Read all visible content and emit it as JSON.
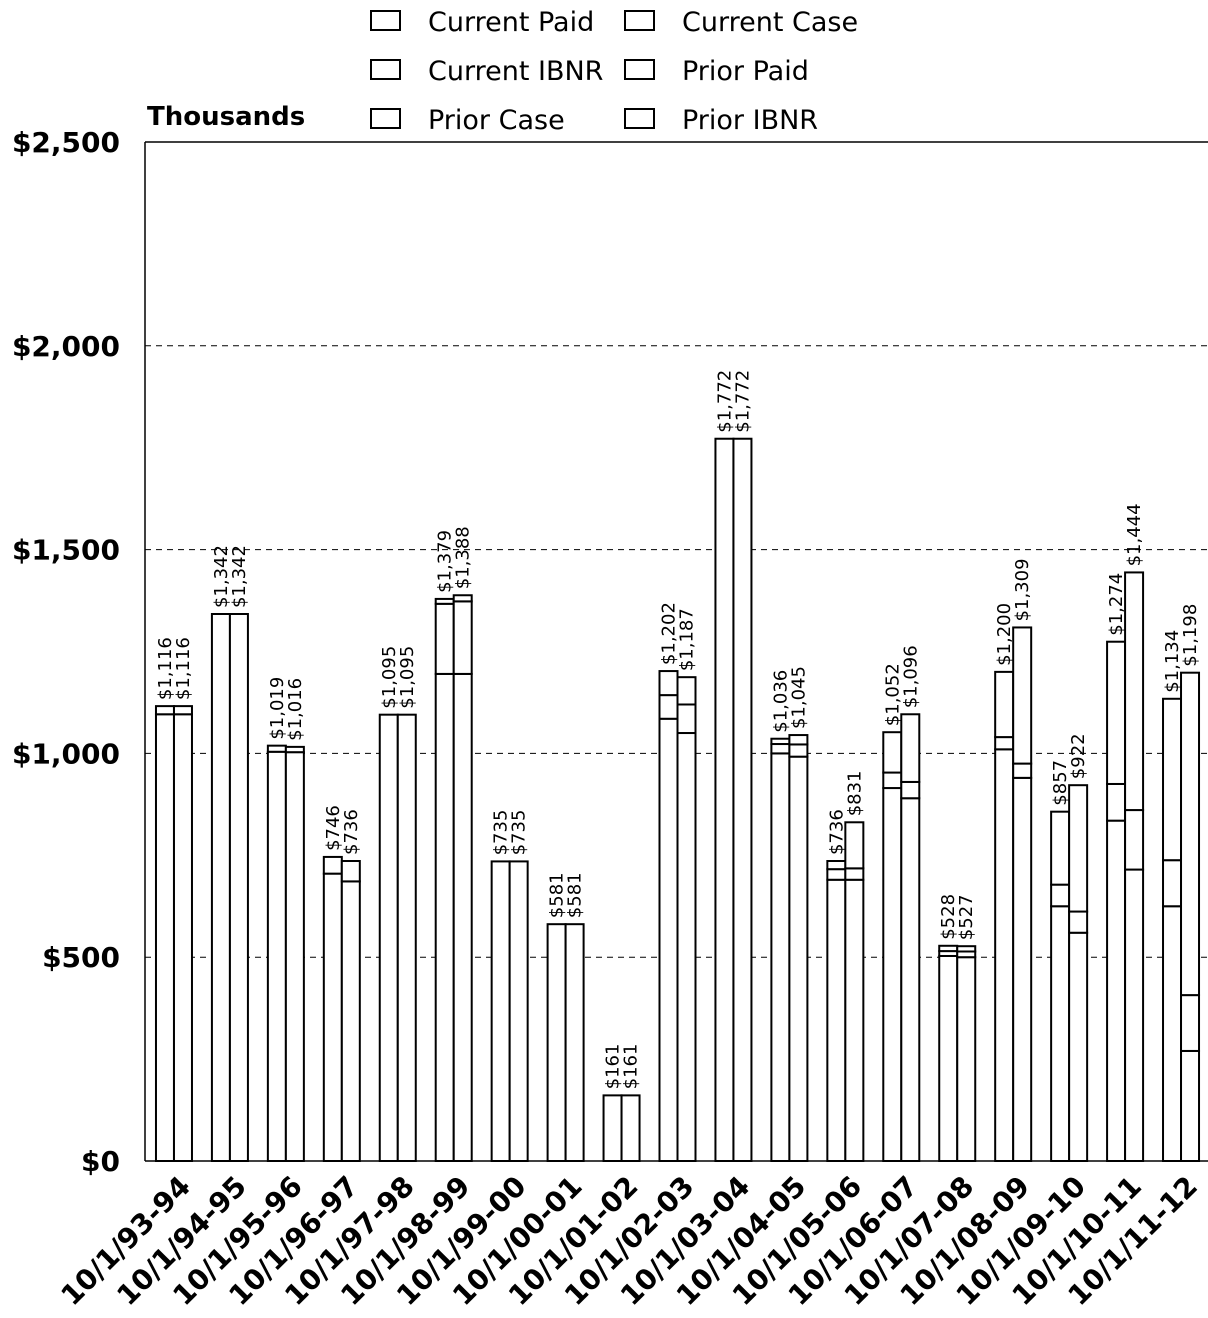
{
  "chart_data": {
    "type": "bar",
    "stacked": true,
    "grouped_pairs": true,
    "unit_label": "Thousands",
    "ylim": [
      0,
      2500
    ],
    "y_ticks": [
      0,
      500,
      1000,
      1500,
      2000,
      2500
    ],
    "y_tick_labels": [
      "$0",
      "$500",
      "$1,000",
      "$1,500",
      "$2,000",
      "$2,500"
    ],
    "grid": "horizontal dashed",
    "legend_position": "top",
    "legend": [
      "Current Paid",
      "Current Case",
      "Current IBNR",
      "Prior Paid",
      "Prior Case",
      "Prior IBNR"
    ],
    "categories": [
      "10/1/93-94",
      "10/1/94-95",
      "10/1/95-96",
      "10/1/96-97",
      "10/1/97-98",
      "10/1/98-99",
      "10/1/99-00",
      "10/1/00-01",
      "10/1/01-02",
      "10/1/02-03",
      "10/1/03-04",
      "10/1/04-05",
      "10/1/05-06",
      "10/1/06-07",
      "10/1/07-08",
      "10/1/08-09",
      "10/1/09-10",
      "10/1/10-11",
      "10/1/11-12"
    ],
    "bars": [
      {
        "label": "$1,116",
        "total": 1116,
        "segments": [
          1096,
          20
        ]
      },
      {
        "label": "$1,116",
        "total": 1116,
        "segments": [
          1096,
          20
        ]
      },
      {
        "label": "$1,342",
        "total": 1342,
        "segments": [
          1342
        ]
      },
      {
        "label": "$1,342",
        "total": 1342,
        "segments": [
          1342
        ]
      },
      {
        "label": "$1,019",
        "total": 1019,
        "segments": [
          1004,
          15
        ]
      },
      {
        "label": "$1,016",
        "total": 1016,
        "segments": [
          1003,
          13
        ]
      },
      {
        "label": "$746",
        "total": 746,
        "segments": [
          705,
          41
        ]
      },
      {
        "label": "$736",
        "total": 736,
        "segments": [
          686,
          50
        ]
      },
      {
        "label": "$1,095",
        "total": 1095,
        "segments": [
          1095
        ]
      },
      {
        "label": "$1,095",
        "total": 1095,
        "segments": [
          1095
        ]
      },
      {
        "label": "$1,379",
        "total": 1379,
        "segments": [
          1195,
          172,
          12
        ]
      },
      {
        "label": "$1,388",
        "total": 1388,
        "segments": [
          1195,
          178,
          15
        ]
      },
      {
        "label": "$735",
        "total": 735,
        "segments": [
          735
        ]
      },
      {
        "label": "$735",
        "total": 735,
        "segments": [
          735
        ]
      },
      {
        "label": "$581",
        "total": 581,
        "segments": [
          581
        ]
      },
      {
        "label": "$581",
        "total": 581,
        "segments": [
          581
        ]
      },
      {
        "label": "$161",
        "total": 161,
        "segments": [
          161
        ]
      },
      {
        "label": "$161",
        "total": 161,
        "segments": [
          161
        ]
      },
      {
        "label": "$1,202",
        "total": 1202,
        "segments": [
          1085,
          58,
          59
        ]
      },
      {
        "label": "$1,187",
        "total": 1187,
        "segments": [
          1050,
          70,
          67
        ]
      },
      {
        "label": "$1,772",
        "total": 1772,
        "segments": [
          1772
        ]
      },
      {
        "label": "$1,772",
        "total": 1772,
        "segments": [
          1772
        ]
      },
      {
        "label": "$1,036",
        "total": 1036,
        "segments": [
          1000,
          23,
          13
        ]
      },
      {
        "label": "$1,045",
        "total": 1045,
        "segments": [
          992,
          30,
          23
        ]
      },
      {
        "label": "$736",
        "total": 736,
        "segments": [
          690,
          26,
          20
        ]
      },
      {
        "label": "$831",
        "total": 831,
        "segments": [
          690,
          28,
          113
        ]
      },
      {
        "label": "$1,052",
        "total": 1052,
        "segments": [
          915,
          38,
          99
        ]
      },
      {
        "label": "$1,096",
        "total": 1096,
        "segments": [
          890,
          40,
          166
        ]
      },
      {
        "label": "$528",
        "total": 528,
        "segments": [
          503,
          12,
          13
        ]
      },
      {
        "label": "$527",
        "total": 527,
        "segments": [
          500,
          14,
          13
        ]
      },
      {
        "label": "$1,200",
        "total": 1200,
        "segments": [
          1010,
          30,
          160
        ]
      },
      {
        "label": "$1,309",
        "total": 1309,
        "segments": [
          940,
          35,
          334
        ]
      },
      {
        "label": "$857",
        "total": 857,
        "segments": [
          625,
          53,
          179
        ]
      },
      {
        "label": "$922",
        "total": 922,
        "segments": [
          560,
          52,
          310
        ]
      },
      {
        "label": "$1,274",
        "total": 1274,
        "segments": [
          835,
          90,
          349
        ]
      },
      {
        "label": "$1,444",
        "total": 1444,
        "segments": [
          715,
          146,
          583
        ]
      },
      {
        "label": "$1,134",
        "total": 1134,
        "segments": [
          625,
          113,
          396
        ]
      },
      {
        "label": "$1,198",
        "total": 1198,
        "segments": [
          270,
          137,
          791
        ]
      }
    ]
  }
}
